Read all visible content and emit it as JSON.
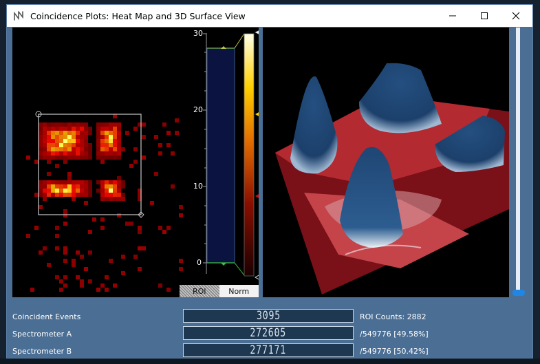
{
  "window": {
    "title": "Coincidence Plots: Heat Map and 3D Surface View"
  },
  "scale": {
    "ticks": [
      "30",
      "20",
      "10",
      "0"
    ],
    "mode_buttons": [
      "ROI",
      "Norm"
    ],
    "active_mode": "Norm"
  },
  "stats": [
    {
      "label": "Coincident Events",
      "value": "3095",
      "side": "ROI Counts: 2882"
    },
    {
      "label": "Spectrometer A",
      "value": "272605",
      "side": "/549776 [49.58%]"
    },
    {
      "label": "Spectrometer B",
      "value": "277171",
      "side": "/549776 [50.42%]"
    }
  ],
  "slider": {
    "level": 0.0
  },
  "colors": {
    "titlebar": "#ffffff",
    "panel": "#4a6e94",
    "heat_low": "#3a0000",
    "heat_high": "#fff6a0",
    "surface_high": "#1e4a7a",
    "surface_low": "#a01c22",
    "slider_thumb": "#1f86e6"
  },
  "icons": {
    "app": "app-logo-icon",
    "minimize": "minimize-icon",
    "maximize": "maximize-icon",
    "close": "close-icon"
  }
}
